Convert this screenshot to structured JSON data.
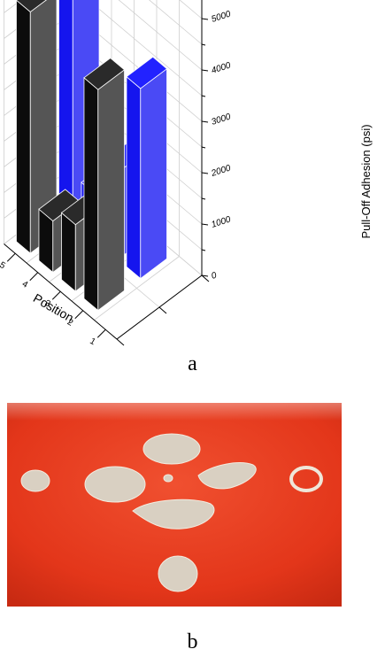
{
  "chart_data": {
    "type": "bar3d",
    "title": "",
    "zlabel": "Pull-Off Adhesion (psi)",
    "xlabel": "Position",
    "z_ticks": [
      "0",
      "1000",
      "2000",
      "3000",
      "4000",
      "5000"
    ],
    "zlim": [
      0,
      5000
    ],
    "position_ticks": [
      "1",
      "2",
      "3",
      "4",
      "5"
    ],
    "legend": "none",
    "series": [
      {
        "color": "#1a1a1a",
        "values": [
          {
            "position": 2,
            "value": 4300
          },
          {
            "position": 3,
            "value": 1300
          },
          {
            "position": 4,
            "value": 1000
          },
          {
            "position": 5,
            "value": 4700
          }
        ]
      },
      {
        "color": "#1a1aff",
        "values": [
          {
            "position": 2,
            "value": 3700
          },
          {
            "position": 3,
            "value": 1700
          },
          {
            "position": 4,
            "value": 900
          },
          {
            "position": 5,
            "value": 5100
          }
        ]
      }
    ]
  },
  "captions": {
    "a": "a",
    "b": "b"
  },
  "photo": {
    "description_colors": {
      "background": "#e83a1c",
      "patch": "#d8cfc0"
    }
  }
}
